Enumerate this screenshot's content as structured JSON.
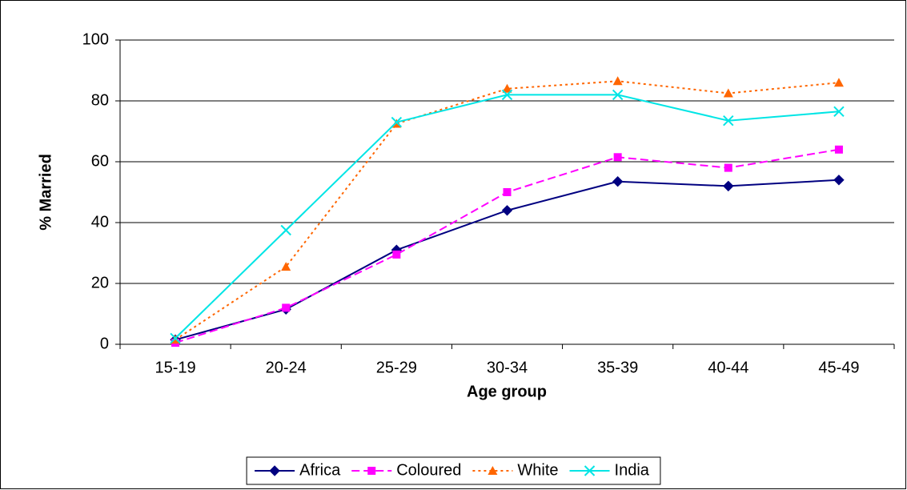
{
  "chart_data": {
    "type": "line",
    "categories": [
      "15-19",
      "20-24",
      "25-29",
      "30-34",
      "35-39",
      "40-44",
      "45-49"
    ],
    "series": [
      {
        "name": "Africa",
        "color": "#000080",
        "dash": "solid",
        "marker": "diamond",
        "values": [
          1.5,
          11.5,
          31,
          44,
          53.5,
          52,
          54
        ]
      },
      {
        "name": "Coloured",
        "color": "#ff00ff",
        "dash": "dashed",
        "marker": "square",
        "values": [
          0.5,
          12,
          29.5,
          50,
          61.5,
          58,
          64
        ]
      },
      {
        "name": "White",
        "color": "#ff6600",
        "dash": "dotted",
        "marker": "triangle",
        "values": [
          1.5,
          25.5,
          72.5,
          84,
          86.5,
          82.5,
          86
        ]
      },
      {
        "name": "India",
        "color": "#00e5e5",
        "dash": "solid",
        "marker": "x",
        "values": [
          2,
          37.5,
          73,
          82,
          82,
          73.5,
          76.5
        ]
      }
    ],
    "xlabel": "Age group",
    "ylabel": "% Married",
    "ylim": [
      0,
      100
    ],
    "yticks": [
      0,
      20,
      40,
      60,
      80,
      100
    ],
    "grid": true,
    "legend": "bottom"
  }
}
